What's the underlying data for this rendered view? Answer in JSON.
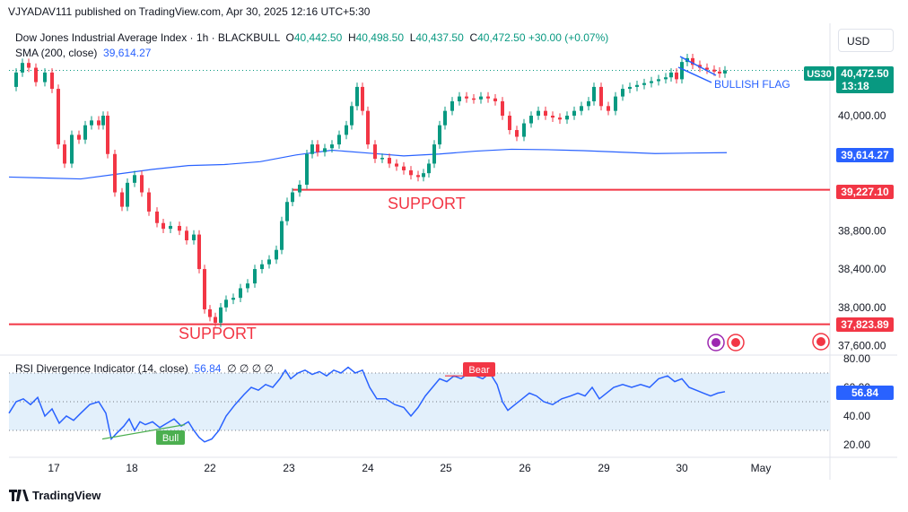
{
  "header": {
    "published_line": "VJYADAV111 published on TradingView.com, Apr 30, 2025 12:16 UTC+5:30",
    "symbol_title": "Dow Jones Industrial Average Index · 1h · BLACKBULL",
    "ohlc": {
      "o_label": "O",
      "o": "40,442.50",
      "h_label": "H",
      "h": "40,498.50",
      "l_label": "L",
      "l": "40,437.50",
      "c_label": "C",
      "c": "40,472.50",
      "change": "+30.00 (+0.07%)"
    },
    "sma_label": "SMA (200, close)",
    "sma_value": "39,614.27",
    "currency": "USD"
  },
  "rsi_legend": {
    "label": "RSI Divergence Indicator (14, close)",
    "value": "56.84",
    "placeholders": "∅ ∅ ∅ ∅"
  },
  "annotations": {
    "support_upper": "SUPPORT",
    "support_lower": "SUPPORT",
    "bullish_flag": "BULLISH FLAG",
    "bull_tag": "Bull",
    "bear_tag": "Bear"
  },
  "price_badges": {
    "symbol": "US30",
    "last_price": "40,472.50",
    "countdown": "13:18",
    "sma": "39,614.27",
    "support_upper": "39,227.10",
    "support_lower": "37,823.89",
    "rsi": "56.84"
  },
  "colors": {
    "up": "#089981",
    "down": "#f23645",
    "sma": "#2962ff",
    "rsi_line": "#2962ff",
    "rsi_band": "#e3f0fb",
    "support": "#f23645",
    "bull": "#4caf50",
    "bear": "#f23645"
  },
  "chart_data": [
    {
      "type": "candlestick",
      "title": "Dow Jones Industrial Average Index · 1h · BLACKBULL",
      "x_tick_labels": [
        "17",
        "18",
        "22",
        "23",
        "24",
        "25",
        "26",
        "29",
        "30",
        "May"
      ],
      "y_tick_labels": [
        "40,000.00",
        "38,800.00",
        "38,400.00",
        "38,000.00",
        "37,600.00"
      ],
      "ylim": [
        37500,
        40900
      ],
      "series": [
        {
          "name": "SMA (200, close)",
          "last_value": 39614.27,
          "points": [
            [
              0,
              39360
            ],
            [
              40,
              39350
            ],
            [
              80,
              39340
            ],
            [
              120,
              39390
            ],
            [
              160,
              39440
            ],
            [
              200,
              39480
            ],
            [
              240,
              39490
            ],
            [
              280,
              39520
            ],
            [
              320,
              39590
            ],
            [
              360,
              39640
            ],
            [
              400,
              39610
            ],
            [
              440,
              39580
            ],
            [
              480,
              39600
            ],
            [
              520,
              39630
            ],
            [
              560,
              39650
            ],
            [
              600,
              39645
            ],
            [
              640,
              39635
            ],
            [
              680,
              39620
            ],
            [
              720,
              39605
            ],
            [
              760,
              39610
            ],
            [
              800,
              39614
            ]
          ]
        }
      ],
      "support_levels": [
        39227.1,
        37823.89
      ],
      "candles_points": [
        [
          0,
          40300
        ],
        [
          8,
          40450
        ],
        [
          15,
          40550
        ],
        [
          22,
          40500
        ],
        [
          30,
          40350
        ],
        [
          40,
          40450
        ],
        [
          48,
          40280
        ],
        [
          55,
          39700
        ],
        [
          62,
          39500
        ],
        [
          70,
          39800
        ],
        [
          78,
          39750
        ],
        [
          85,
          39900
        ],
        [
          92,
          39950
        ],
        [
          100,
          39900
        ],
        [
          105,
          40000
        ],
        [
          110,
          39600
        ],
        [
          118,
          39200
        ],
        [
          126,
          39050
        ],
        [
          132,
          39300
        ],
        [
          140,
          39380
        ],
        [
          148,
          39200
        ],
        [
          156,
          39000
        ],
        [
          165,
          38880
        ],
        [
          172,
          38820
        ],
        [
          180,
          38850
        ],
        [
          190,
          38800
        ],
        [
          198,
          38700
        ],
        [
          206,
          38760
        ],
        [
          212,
          38400
        ],
        [
          218,
          37980
        ],
        [
          224,
          37900
        ],
        [
          230,
          37840
        ],
        [
          236,
          38000
        ],
        [
          242,
          38080
        ],
        [
          250,
          38100
        ],
        [
          258,
          38200
        ],
        [
          266,
          38250
        ],
        [
          274,
          38400
        ],
        [
          282,
          38450
        ],
        [
          290,
          38500
        ],
        [
          298,
          38600
        ],
        [
          304,
          38900
        ],
        [
          310,
          39100
        ],
        [
          316,
          39200
        ],
        [
          324,
          39280
        ],
        [
          332,
          39600
        ],
        [
          338,
          39700
        ],
        [
          344,
          39620
        ],
        [
          352,
          39660
        ],
        [
          360,
          39700
        ],
        [
          368,
          39800
        ],
        [
          376,
          39900
        ],
        [
          382,
          40100
        ],
        [
          388,
          40300
        ],
        [
          394,
          40050
        ],
        [
          400,
          39700
        ],
        [
          408,
          39550
        ],
        [
          416,
          39560
        ],
        [
          424,
          39500
        ],
        [
          432,
          39470
        ],
        [
          440,
          39430
        ],
        [
          448,
          39380
        ],
        [
          456,
          39360
        ],
        [
          462,
          39400
        ],
        [
          468,
          39500
        ],
        [
          474,
          39700
        ],
        [
          480,
          39900
        ],
        [
          486,
          40050
        ],
        [
          494,
          40150
        ],
        [
          502,
          40200
        ],
        [
          510,
          40180
        ],
        [
          518,
          40170
        ],
        [
          526,
          40200
        ],
        [
          534,
          40180
        ],
        [
          542,
          40150
        ],
        [
          550,
          40000
        ],
        [
          558,
          39850
        ],
        [
          566,
          39780
        ],
        [
          574,
          39920
        ],
        [
          582,
          40000
        ],
        [
          590,
          40050
        ],
        [
          598,
          40000
        ],
        [
          606,
          39980
        ],
        [
          614,
          39960
        ],
        [
          622,
          40000
        ],
        [
          630,
          40050
        ],
        [
          638,
          40100
        ],
        [
          646,
          40150
        ],
        [
          652,
          40300
        ],
        [
          660,
          40100
        ],
        [
          668,
          40050
        ],
        [
          676,
          40200
        ],
        [
          684,
          40280
        ],
        [
          692,
          40300
        ],
        [
          700,
          40320
        ],
        [
          708,
          40340
        ],
        [
          716,
          40360
        ],
        [
          724,
          40380
        ],
        [
          732,
          40400
        ],
        [
          738,
          40450
        ],
        [
          744,
          40380
        ],
        [
          750,
          40560
        ],
        [
          756,
          40600
        ],
        [
          762,
          40530
        ],
        [
          770,
          40500
        ],
        [
          778,
          40480
        ],
        [
          786,
          40460
        ],
        [
          792,
          40440
        ],
        [
          798,
          40472
        ]
      ]
    },
    {
      "type": "line",
      "title": "RSI Divergence Indicator (14, close)",
      "y_tick_labels": [
        "80.00",
        "60.00",
        "40.00",
        "20.00"
      ],
      "ylim": [
        15,
        82
      ],
      "band": [
        30,
        70
      ],
      "last_value": 56.84,
      "points": [
        [
          0,
          42
        ],
        [
          8,
          50
        ],
        [
          16,
          52
        ],
        [
          24,
          48
        ],
        [
          32,
          53
        ],
        [
          40,
          40
        ],
        [
          48,
          45
        ],
        [
          56,
          35
        ],
        [
          64,
          40
        ],
        [
          72,
          37
        ],
        [
          80,
          42
        ],
        [
          90,
          48
        ],
        [
          100,
          50
        ],
        [
          108,
          42
        ],
        [
          114,
          24
        ],
        [
          120,
          28
        ],
        [
          128,
          33
        ],
        [
          134,
          38
        ],
        [
          140,
          30
        ],
        [
          146,
          36
        ],
        [
          152,
          34
        ],
        [
          160,
          36
        ],
        [
          168,
          32
        ],
        [
          176,
          35
        ],
        [
          184,
          38
        ],
        [
          192,
          33
        ],
        [
          200,
          36
        ],
        [
          206,
          30
        ],
        [
          212,
          25
        ],
        [
          218,
          22
        ],
        [
          226,
          24
        ],
        [
          234,
          30
        ],
        [
          242,
          40
        ],
        [
          252,
          48
        ],
        [
          262,
          55
        ],
        [
          270,
          60
        ],
        [
          278,
          58
        ],
        [
          286,
          62
        ],
        [
          294,
          60
        ],
        [
          302,
          66
        ],
        [
          308,
          72
        ],
        [
          314,
          66
        ],
        [
          322,
          70
        ],
        [
          330,
          72
        ],
        [
          338,
          69
        ],
        [
          346,
          71
        ],
        [
          354,
          68
        ],
        [
          362,
          72
        ],
        [
          370,
          70
        ],
        [
          378,
          74
        ],
        [
          386,
          70
        ],
        [
          394,
          72
        ],
        [
          402,
          60
        ],
        [
          410,
          52
        ],
        [
          420,
          52
        ],
        [
          430,
          48
        ],
        [
          440,
          46
        ],
        [
          448,
          40
        ],
        [
          456,
          46
        ],
        [
          464,
          54
        ],
        [
          472,
          60
        ],
        [
          480,
          66
        ],
        [
          488,
          64
        ],
        [
          496,
          68
        ],
        [
          504,
          66
        ],
        [
          512,
          70
        ],
        [
          520,
          68
        ],
        [
          528,
          66
        ],
        [
          536,
          70
        ],
        [
          544,
          62
        ],
        [
          550,
          50
        ],
        [
          556,
          44
        ],
        [
          564,
          48
        ],
        [
          572,
          52
        ],
        [
          580,
          56
        ],
        [
          588,
          54
        ],
        [
          596,
          50
        ],
        [
          606,
          48
        ],
        [
          616,
          52
        ],
        [
          626,
          54
        ],
        [
          634,
          56
        ],
        [
          642,
          54
        ],
        [
          650,
          60
        ],
        [
          658,
          52
        ],
        [
          666,
          56
        ],
        [
          674,
          60
        ],
        [
          684,
          62
        ],
        [
          694,
          60
        ],
        [
          704,
          62
        ],
        [
          714,
          60
        ],
        [
          724,
          66
        ],
        [
          734,
          68
        ],
        [
          742,
          64
        ],
        [
          750,
          66
        ],
        [
          758,
          60
        ],
        [
          766,
          58
        ],
        [
          774,
          56
        ],
        [
          782,
          54
        ],
        [
          790,
          56
        ],
        [
          798,
          57
        ]
      ],
      "divergences": [
        {
          "tag": "Bull"
        },
        {
          "tag": "Bear"
        }
      ]
    }
  ]
}
